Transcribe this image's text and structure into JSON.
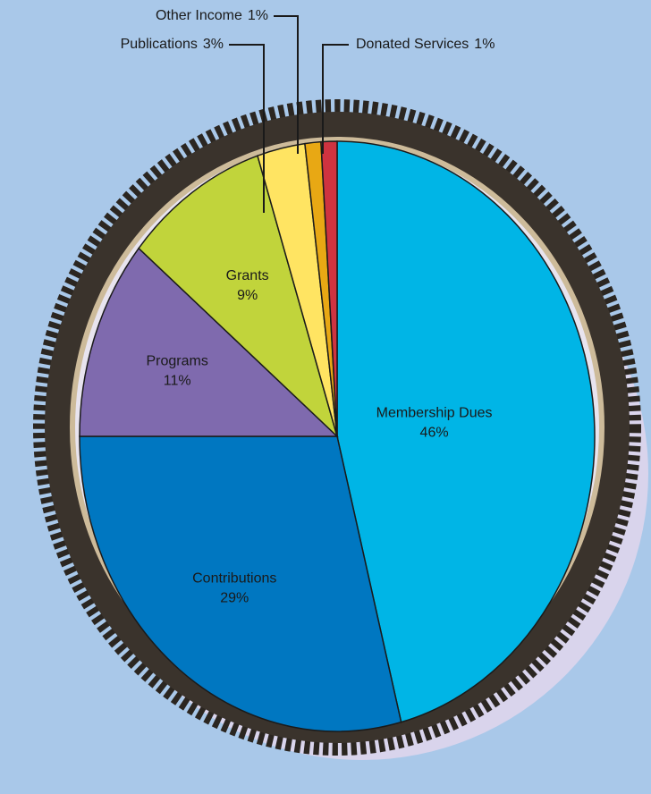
{
  "chart_data": {
    "type": "pie",
    "categories": [
      "Membership Dues",
      "Contributions",
      "Programs",
      "Grants",
      "Publications",
      "Other Income",
      "Donated Services"
    ],
    "values": [
      46,
      29,
      11,
      9,
      3,
      1,
      1
    ],
    "value_labels": [
      "46%",
      "29%",
      "11%",
      "9%",
      "3%",
      "1%",
      "1%"
    ],
    "colors": [
      "#00b5e6",
      "#0077c1",
      "#7f6aae",
      "#c1d43b",
      "#ffe462",
      "#e8a814",
      "#cf3340"
    ]
  }
}
